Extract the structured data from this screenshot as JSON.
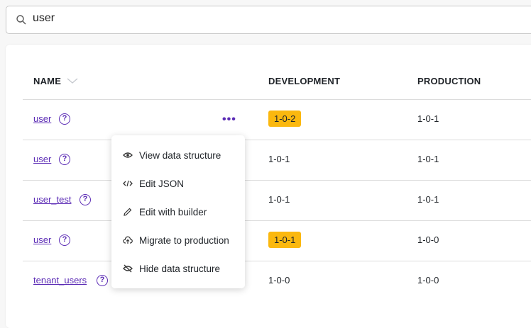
{
  "search": {
    "value": "user",
    "icon": "search-icon"
  },
  "table": {
    "headers": {
      "name": "NAME",
      "development": "DEVELOPMENT",
      "production": "PRODUCTION"
    },
    "rows": [
      {
        "name": "user",
        "development": "1-0-2",
        "dev_highlight": true,
        "production": "1-0-1"
      },
      {
        "name": "user",
        "development": "1-0-1",
        "dev_highlight": false,
        "production": "1-0-1"
      },
      {
        "name": "user_test",
        "development": "1-0-1",
        "dev_highlight": false,
        "production": "1-0-1"
      },
      {
        "name": "user",
        "development": "1-0-1",
        "dev_highlight": true,
        "production": "1-0-0"
      },
      {
        "name": "tenant_users",
        "development": "1-0-0",
        "dev_highlight": false,
        "production": "1-0-0"
      }
    ],
    "help_glyph": "?",
    "more_glyph": "•••"
  },
  "menu": {
    "items": [
      {
        "label": "View data structure",
        "icon": "eye-icon"
      },
      {
        "label": "Edit JSON",
        "icon": "code-icon"
      },
      {
        "label": "Edit with builder",
        "icon": "pencil-icon"
      },
      {
        "label": "Migrate to production",
        "icon": "cloud-upload-icon"
      },
      {
        "label": "Hide data structure",
        "icon": "eye-off-icon"
      }
    ]
  },
  "colors": {
    "accent": "#5b2bb5",
    "badge": "#fbb80f"
  }
}
